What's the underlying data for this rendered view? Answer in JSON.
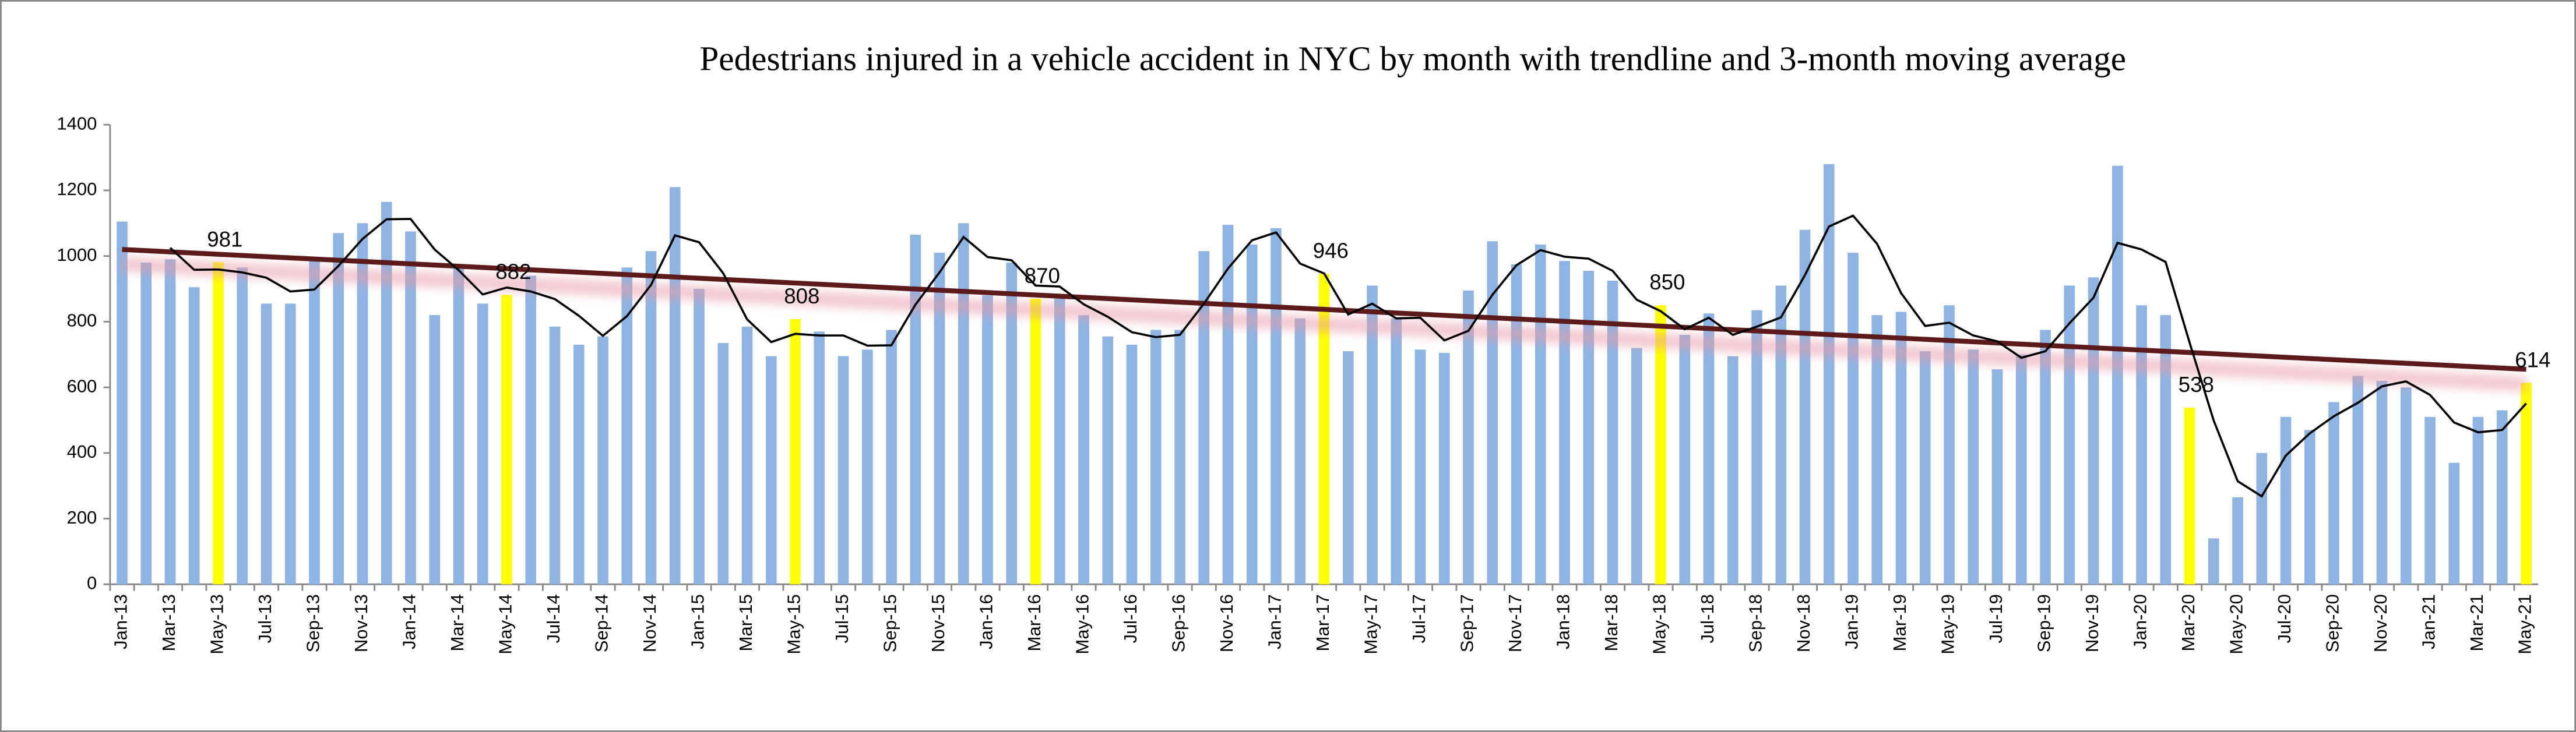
{
  "chart_data": {
    "type": "bar",
    "title": "Pedestrians injured in a vehicle accident in NYC by month with trendline and 3-month moving average",
    "categories": [
      "Jan-13",
      null,
      "Mar-13",
      null,
      "May-13",
      null,
      "Jul-13",
      null,
      "Sep-13",
      null,
      "Nov-13",
      null,
      "Jan-14",
      null,
      "Mar-14",
      null,
      "May-14",
      null,
      "Jul-14",
      null,
      "Sep-14",
      null,
      "Nov-14",
      null,
      "Jan-15",
      null,
      "Mar-15",
      null,
      "May-15",
      null,
      "Jul-15",
      null,
      "Sep-15",
      null,
      "Nov-15",
      null,
      "Jan-16",
      null,
      "Mar-16",
      null,
      "May-16",
      null,
      "Jul-16",
      null,
      "Sep-16",
      null,
      "Nov-16",
      null,
      "Jan-17",
      null,
      "Mar-17",
      null,
      "May-17",
      null,
      "Jul-17",
      null,
      "Sep-17",
      null,
      "Nov-17",
      null,
      "Jan-18",
      null,
      "Mar-18",
      null,
      "May-18",
      null,
      "Jul-18",
      null,
      "Sep-18",
      null,
      "Nov-18",
      null,
      "Jan-19",
      null,
      "Mar-19",
      null,
      "May-19",
      null,
      "Jul-19",
      null,
      "Sep-19",
      null,
      "Nov-19",
      null,
      "Jan-20",
      null,
      "Mar-20",
      null,
      "May-20",
      null,
      "Jul-20",
      null,
      "Sep-20",
      null,
      "Nov-20",
      null,
      "Jan-21",
      null,
      "Mar-21",
      null,
      "May-21"
    ],
    "values": [
      1105,
      980,
      990,
      905,
      981,
      965,
      855,
      855,
      985,
      1070,
      1100,
      1165,
      1075,
      820,
      975,
      855,
      882,
      940,
      785,
      730,
      755,
      965,
      1015,
      1210,
      900,
      735,
      785,
      695,
      808,
      770,
      695,
      715,
      775,
      1065,
      1010,
      1100,
      880,
      980,
      870,
      870,
      820,
      755,
      730,
      775,
      775,
      1015,
      1095,
      1035,
      1085,
      810,
      946,
      710,
      910,
      810,
      715,
      705,
      895,
      1045,
      975,
      1035,
      985,
      955,
      925,
      720,
      850,
      760,
      825,
      695,
      835,
      910,
      1080,
      1280,
      1010,
      820,
      830,
      710,
      850,
      715,
      655,
      700,
      775,
      910,
      935,
      1275,
      850,
      820,
      538,
      140,
      265,
      400,
      510,
      470,
      555,
      635,
      620,
      600,
      510,
      370,
      510,
      530,
      614
    ],
    "colors": [
      "#8eb4e3",
      "#8eb4e3",
      "#8eb4e3",
      "#8eb4e3",
      "#ffff00",
      "#8eb4e3",
      "#8eb4e3",
      "#8eb4e3",
      "#8eb4e3",
      "#8eb4e3",
      "#8eb4e3",
      "#8eb4e3",
      "#8eb4e3",
      "#8eb4e3",
      "#8eb4e3",
      "#8eb4e3",
      "#ffff00",
      "#8eb4e3",
      "#8eb4e3",
      "#8eb4e3",
      "#8eb4e3",
      "#8eb4e3",
      "#8eb4e3",
      "#8eb4e3",
      "#8eb4e3",
      "#8eb4e3",
      "#8eb4e3",
      "#8eb4e3",
      "#ffff00",
      "#8eb4e3",
      "#8eb4e3",
      "#8eb4e3",
      "#8eb4e3",
      "#8eb4e3",
      "#8eb4e3",
      "#8eb4e3",
      "#8eb4e3",
      "#8eb4e3",
      "#ffff00",
      "#8eb4e3",
      "#8eb4e3",
      "#8eb4e3",
      "#8eb4e3",
      "#8eb4e3",
      "#8eb4e3",
      "#8eb4e3",
      "#8eb4e3",
      "#8eb4e3",
      "#8eb4e3",
      "#8eb4e3",
      "#ffff00",
      "#8eb4e3",
      "#8eb4e3",
      "#8eb4e3",
      "#8eb4e3",
      "#8eb4e3",
      "#8eb4e3",
      "#8eb4e3",
      "#8eb4e3",
      "#8eb4e3",
      "#8eb4e3",
      "#8eb4e3",
      "#8eb4e3",
      "#8eb4e3",
      "#ffff00",
      "#8eb4e3",
      "#8eb4e3",
      "#8eb4e3",
      "#8eb4e3",
      "#8eb4e3",
      "#8eb4e3",
      "#8eb4e3",
      "#8eb4e3",
      "#8eb4e3",
      "#8eb4e3",
      "#8eb4e3",
      "#8eb4e3",
      "#8eb4e3",
      "#8eb4e3",
      "#8eb4e3",
      "#8eb4e3",
      "#8eb4e3",
      "#8eb4e3",
      "#8eb4e3",
      "#8eb4e3",
      "#8eb4e3",
      "#ffff00",
      "#8eb4e3",
      "#8eb4e3",
      "#8eb4e3",
      "#8eb4e3",
      "#8eb4e3",
      "#8eb4e3",
      "#8eb4e3",
      "#8eb4e3",
      "#8eb4e3",
      "#8eb4e3",
      "#8eb4e3",
      "#8eb4e3",
      "#8eb4e3",
      "#ffff00"
    ],
    "highlight_color": "#ffff00",
    "moving_average": [
      null,
      null,
      1025,
      958,
      959,
      950,
      934,
      892,
      898,
      970,
      1052,
      1112,
      1113,
      1020,
      957,
      883,
      904,
      892,
      869,
      818,
      757,
      817,
      912,
      1063,
      1042,
      948,
      807,
      738,
      763,
      758,
      758,
      727,
      728,
      852,
      950,
      1058,
      997,
      987,
      910,
      907,
      853,
      815,
      768,
      753,
      760,
      855,
      962,
      1048,
      1072,
      977,
      947,
      822,
      855,
      810,
      812,
      743,
      772,
      882,
      972,
      1018,
      998,
      992,
      955,
      867,
      832,
      777,
      812,
      760,
      785,
      813,
      942,
      1090,
      1123,
      1037,
      887,
      787,
      797,
      758,
      740,
      690,
      710,
      795,
      873,
      1040,
      1020,
      982,
      736,
      499,
      314,
      268,
      392,
      460,
      512,
      553,
      603,
      618,
      577,
      493,
      463,
      470,
      551
    ],
    "moving_average_color": "#000000",
    "trendline": [
      1020,
      655
    ],
    "trendline_color": "#5c1a1b",
    "ylim": [
      0,
      1400
    ],
    "yticks": [
      0,
      200,
      400,
      600,
      800,
      1000,
      1200,
      1400
    ],
    "grid": false
  }
}
